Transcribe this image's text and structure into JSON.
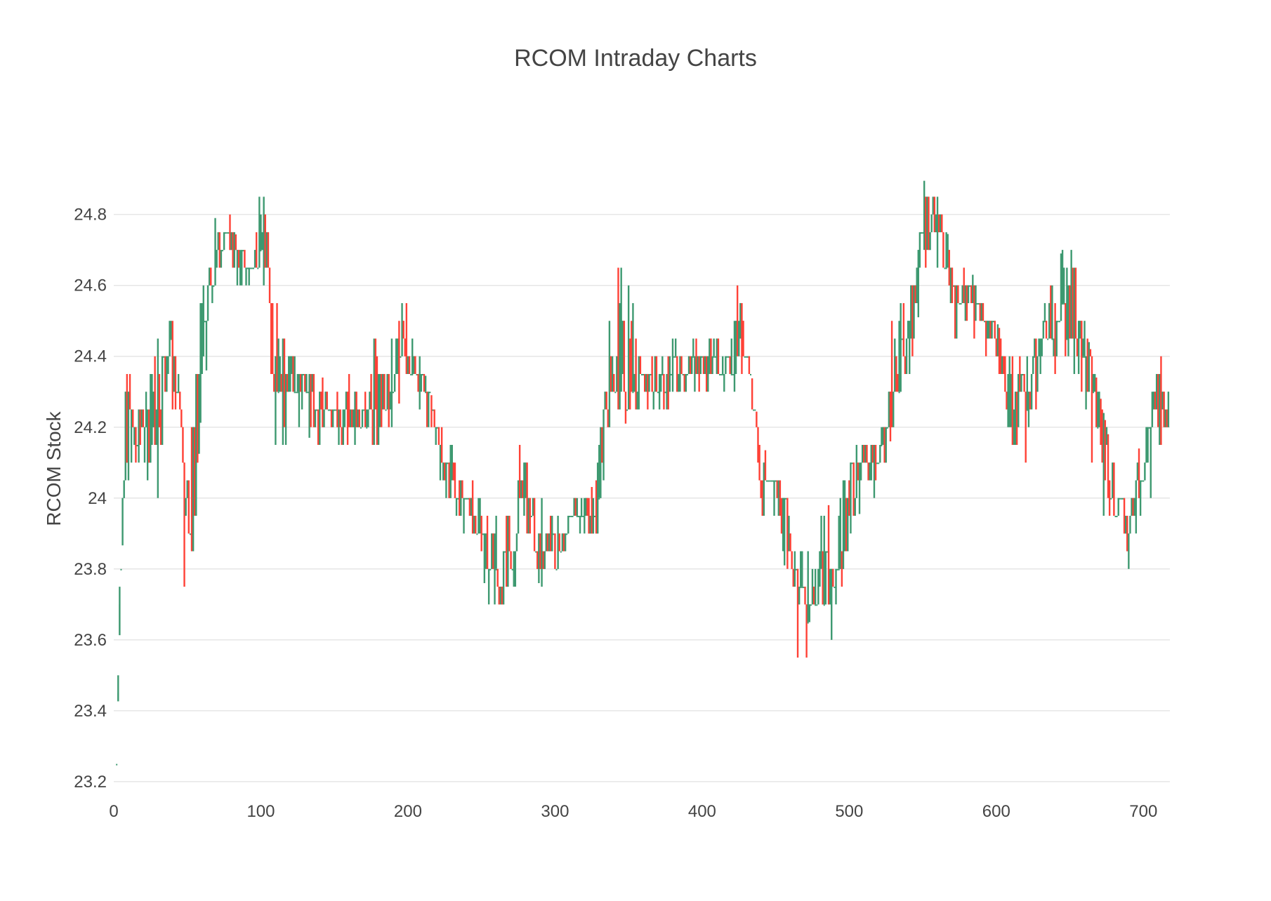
{
  "colors": {
    "increasing": "#3d9970",
    "decreasing": "#ff4136",
    "grid": "#e6e6e6",
    "text": "#444444"
  },
  "chart_data": {
    "type": "candlestick",
    "title": "RCOM Intraday Charts",
    "xlabel": "",
    "ylabel": "RCOM Stock",
    "xlim": [
      0,
      718
    ],
    "ylim": [
      23.18,
      24.93
    ],
    "x_ticks": [
      "0",
      "100",
      "200",
      "300",
      "400",
      "500",
      "600",
      "700"
    ],
    "y_ticks": [
      "23.2",
      "23.4",
      "23.6",
      "23.8",
      "24",
      "24.2",
      "24.4",
      "24.6",
      "24.8"
    ],
    "grid": true,
    "legend": "none",
    "price_anchors": {
      "x": [
        2,
        5,
        8,
        12,
        20,
        32,
        36,
        42,
        48,
        52,
        56,
        60,
        65,
        70,
        76,
        82,
        90,
        95,
        100,
        104,
        110,
        116,
        122,
        130,
        140,
        150,
        160,
        170,
        180,
        190,
        196,
        205,
        215,
        225,
        235,
        245,
        255,
        262,
        270,
        280,
        290,
        300,
        310,
        320,
        328,
        335,
        345,
        360,
        380,
        400,
        410,
        420,
        425,
        432,
        440,
        450,
        460,
        466,
        475,
        485,
        490,
        500,
        510,
        520,
        530,
        540,
        550,
        560,
        570,
        580,
        590,
        600,
        610,
        620,
        630,
        640,
        650,
        660,
        670,
        680,
        690,
        700,
        710,
        717
      ],
      "close": [
        23.25,
        23.85,
        24.2,
        24.2,
        24.2,
        24.2,
        24.4,
        24.35,
        24.1,
        23.9,
        24.15,
        24.45,
        24.55,
        24.7,
        24.75,
        24.7,
        24.65,
        24.6,
        24.75,
        24.7,
        24.3,
        24.4,
        24.3,
        24.3,
        24.25,
        24.2,
        24.25,
        24.25,
        24.25,
        24.35,
        24.45,
        24.35,
        24.25,
        24.1,
        24.0,
        23.95,
        23.85,
        23.7,
        23.9,
        24.05,
        23.85,
        23.85,
        23.95,
        23.95,
        23.95,
        24.3,
        24.35,
        24.33,
        24.35,
        24.38,
        24.4,
        24.35,
        24.55,
        24.35,
        24.05,
        24.0,
        23.9,
        23.65,
        23.75,
        23.8,
        23.7,
        24.0,
        24.1,
        24.1,
        24.3,
        24.45,
        24.75,
        24.8,
        24.6,
        24.55,
        24.5,
        24.45,
        24.3,
        24.25,
        24.45,
        24.45,
        24.55,
        24.4,
        24.25,
        24.0,
        23.9,
        24.1,
        24.3,
        24.25
      ],
      "high": [
        23.26,
        24.0,
        24.5,
        24.3,
        24.25,
        24.6,
        24.5,
        24.55,
        24.25,
        24.1,
        24.85,
        24.6,
        24.75,
        24.8,
        24.9,
        24.75,
        24.7,
        24.65,
        24.9,
        24.8,
        24.55,
        24.6,
        24.4,
        24.4,
        24.35,
        24.3,
        24.35,
        24.3,
        24.55,
        24.45,
        24.6,
        24.45,
        24.3,
        24.2,
        24.1,
        24.05,
        24.0,
        23.95,
        24.15,
        24.15,
        24.05,
        23.95,
        24.0,
        24.0,
        24.05,
        24.45,
        24.75,
        24.4,
        24.45,
        24.45,
        24.45,
        24.45,
        24.7,
        24.4,
        24.15,
        24.1,
        24.0,
        23.85,
        23.9,
        24.0,
        23.9,
        24.15,
        24.15,
        24.15,
        24.55,
        24.6,
        24.9,
        24.85,
        24.7,
        24.65,
        24.6,
        24.5,
        24.4,
        24.4,
        24.55,
        24.65,
        24.75,
        24.5,
        24.3,
        24.1,
        24.0,
        24.2,
        24.4,
        24.4
      ],
      "low": [
        23.24,
        23.8,
        24.0,
        24.05,
        24.1,
        23.8,
        24.3,
        24.1,
        23.75,
        23.75,
        23.95,
        24.3,
        24.4,
        24.6,
        24.65,
        24.6,
        24.55,
        24.45,
        24.5,
        24.5,
        24.1,
        24.1,
        24.15,
        24.2,
        24.1,
        24.1,
        24.15,
        24.15,
        24.15,
        24.2,
        24.3,
        24.25,
        24.15,
        24.0,
        23.9,
        23.9,
        23.7,
        23.7,
        23.7,
        23.85,
        23.75,
        23.75,
        23.85,
        23.9,
        23.85,
        24.1,
        24.2,
        24.25,
        24.25,
        24.3,
        24.3,
        24.25,
        24.35,
        24.3,
        23.85,
        23.9,
        23.75,
        23.45,
        23.6,
        23.6,
        23.55,
        23.85,
        24.0,
        24.0,
        24.2,
        24.3,
        24.6,
        24.65,
        24.45,
        24.4,
        24.4,
        24.3,
        24.1,
        24.1,
        24.3,
        24.3,
        24.4,
        24.2,
        23.95,
        23.85,
        23.8,
        23.9,
        24.1,
        24.15
      ]
    }
  }
}
